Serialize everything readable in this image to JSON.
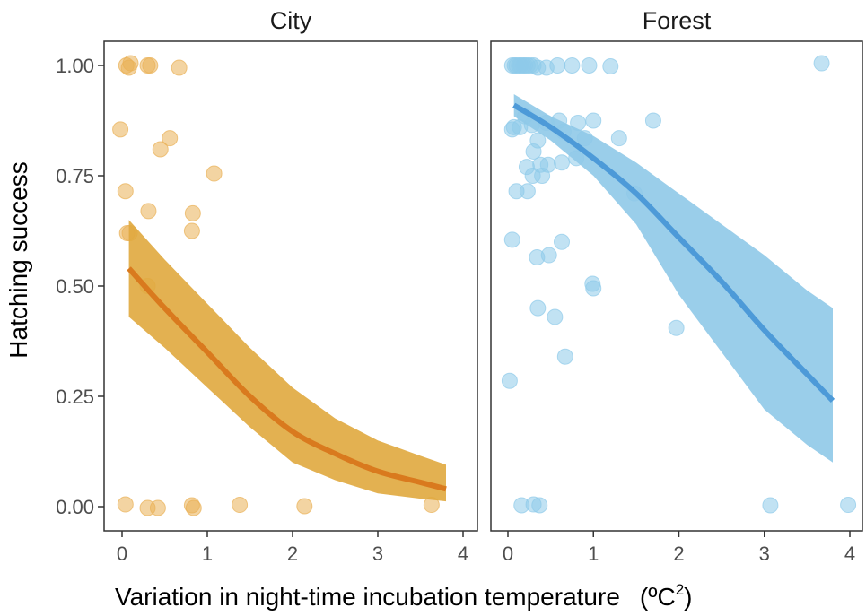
{
  "chart_data": {
    "type": "scatter",
    "ylabel": "Hatching success",
    "xlabel": "Variation in night-time incubation temperature",
    "xlabel_unit": "(ºC",
    "xlabel_unit_sup": "2",
    "xlabel_unit_close": ")",
    "ylim": [
      -0.06,
      1.06
    ],
    "xlim": [
      -0.2,
      4.15
    ],
    "yticks": [
      0,
      0.25,
      0.5,
      0.75,
      1
    ],
    "ytick_labels": [
      "0.00",
      "0.25",
      "0.50",
      "0.75",
      "1.00"
    ],
    "xticks": [
      0,
      1,
      2,
      3,
      4
    ],
    "xtick_labels": [
      "0",
      "1",
      "2",
      "3",
      "4"
    ],
    "grid": false,
    "panels": [
      {
        "name": "City",
        "title": "City",
        "point_color": "#e9b055",
        "line_color": "#d97a1e",
        "band_color": "#e0a83e",
        "points": [
          [
            0.05,
            1.0
          ],
          [
            0.08,
            0.995
          ],
          [
            0.1,
            1.005
          ],
          [
            0.3,
            1.0
          ],
          [
            0.33,
            1.0
          ],
          [
            0.67,
            0.995
          ],
          [
            -0.02,
            0.855
          ],
          [
            0.45,
            0.81
          ],
          [
            0.56,
            0.835
          ],
          [
            1.08,
            0.755
          ],
          [
            0.04,
            0.715
          ],
          [
            0.31,
            0.67
          ],
          [
            0.83,
            0.665
          ],
          [
            0.82,
            0.625
          ],
          [
            0.06,
            0.62
          ],
          [
            0.09,
            0.62
          ],
          [
            0.3,
            0.5
          ],
          [
            0.04,
            0.005
          ],
          [
            0.3,
            -0.003
          ],
          [
            0.42,
            -0.003
          ],
          [
            0.82,
            0.003
          ],
          [
            0.84,
            -0.003
          ],
          [
            1.38,
            0.004
          ],
          [
            2.14,
            0.001
          ],
          [
            3.63,
            0.004
          ]
        ],
        "fit": {
          "x": [
            0.08,
            0.5,
            1.0,
            1.5,
            2.0,
            2.5,
            3.0,
            3.5,
            3.8
          ],
          "y": [
            0.54,
            0.45,
            0.35,
            0.25,
            0.17,
            0.12,
            0.08,
            0.055,
            0.04
          ],
          "lower": [
            0.43,
            0.36,
            0.27,
            0.18,
            0.1,
            0.06,
            0.03,
            0.018,
            0.012
          ],
          "upper": [
            0.65,
            0.56,
            0.46,
            0.36,
            0.27,
            0.2,
            0.15,
            0.115,
            0.095
          ]
        }
      },
      {
        "name": "Forest",
        "title": "Forest",
        "point_color": "#8ecbea",
        "line_color": "#4d9ad8",
        "band_color": "#8fc9e8",
        "points": [
          [
            0.05,
            1.0
          ],
          [
            0.08,
            1.0
          ],
          [
            0.1,
            1.0
          ],
          [
            0.13,
            1.0
          ],
          [
            0.15,
            1.0
          ],
          [
            0.18,
            1.0
          ],
          [
            0.2,
            1.0
          ],
          [
            0.23,
            1.0
          ],
          [
            0.26,
            1.0
          ],
          [
            0.3,
            1.0
          ],
          [
            0.35,
            0.995
          ],
          [
            0.45,
            0.995
          ],
          [
            0.58,
            1.0
          ],
          [
            0.75,
            1.0
          ],
          [
            0.95,
            1.0
          ],
          [
            1.2,
            0.998
          ],
          [
            3.67,
            1.005
          ],
          [
            0.2,
            0.885
          ],
          [
            0.28,
            0.865
          ],
          [
            0.45,
            0.87
          ],
          [
            0.6,
            0.875
          ],
          [
            0.65,
            0.85
          ],
          [
            0.82,
            0.87
          ],
          [
            1.0,
            0.875
          ],
          [
            1.7,
            0.875
          ],
          [
            0.05,
            0.855
          ],
          [
            0.07,
            0.86
          ],
          [
            0.14,
            0.86
          ],
          [
            0.35,
            0.83
          ],
          [
            0.9,
            0.835
          ],
          [
            0.3,
            0.805
          ],
          [
            0.63,
            0.78
          ],
          [
            0.8,
            0.79
          ],
          [
            0.38,
            0.775
          ],
          [
            0.47,
            0.775
          ],
          [
            0.22,
            0.77
          ],
          [
            0.29,
            0.75
          ],
          [
            0.4,
            0.75
          ],
          [
            1.3,
            0.835
          ],
          [
            0.1,
            0.715
          ],
          [
            0.23,
            0.715
          ],
          [
            1.48,
            0.71
          ],
          [
            0.05,
            0.605
          ],
          [
            0.63,
            0.6
          ],
          [
            0.34,
            0.565
          ],
          [
            0.48,
            0.57
          ],
          [
            0.99,
            0.505
          ],
          [
            1.0,
            0.495
          ],
          [
            0.35,
            0.45
          ],
          [
            0.55,
            0.43
          ],
          [
            1.97,
            0.405
          ],
          [
            0.67,
            0.34
          ],
          [
            0.02,
            0.285
          ],
          [
            0.16,
            0.003
          ],
          [
            0.3,
            0.005
          ],
          [
            0.37,
            0.003
          ],
          [
            3.07,
            0.003
          ],
          [
            3.98,
            0.004
          ]
        ],
        "fit": {
          "x": [
            0.07,
            0.5,
            1.0,
            1.5,
            2.0,
            2.5,
            3.0,
            3.5,
            3.8
          ],
          "y": [
            0.91,
            0.86,
            0.79,
            0.71,
            0.61,
            0.51,
            0.4,
            0.3,
            0.24
          ],
          "lower": [
            0.885,
            0.83,
            0.75,
            0.64,
            0.48,
            0.35,
            0.22,
            0.14,
            0.1
          ],
          "upper": [
            0.935,
            0.885,
            0.84,
            0.78,
            0.71,
            0.64,
            0.57,
            0.49,
            0.45
          ]
        }
      }
    ]
  }
}
